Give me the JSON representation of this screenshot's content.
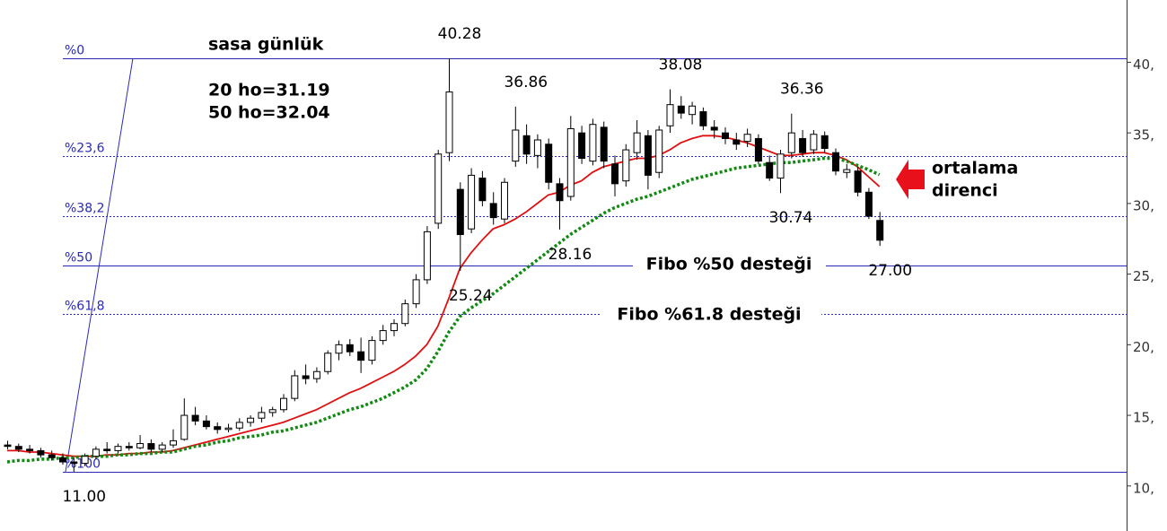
{
  "chart_data": {
    "type": "candlestick",
    "title": "sasa günlük",
    "notes": [
      "20 ho=31.19",
      "50 ho=32.04"
    ],
    "ylim": [
      6.81,
      44.41
    ],
    "yticks": [
      {
        "value": 10,
        "label": "10,"
      },
      {
        "value": 15,
        "label": "15,"
      },
      {
        "value": 20,
        "label": "20,"
      },
      {
        "value": 25,
        "label": "25,"
      },
      {
        "value": 30,
        "label": "30,"
      },
      {
        "value": 35,
        "label": "35,"
      },
      {
        "value": 40,
        "label": "40,"
      }
    ],
    "up_color": "#ffffff",
    "down_color": "#000000",
    "ohlc": [
      [
        12.9,
        13.2,
        12.6,
        12.8
      ],
      [
        12.8,
        13.0,
        12.4,
        12.6
      ],
      [
        12.6,
        12.9,
        12.3,
        12.5
      ],
      [
        12.5,
        12.7,
        12.0,
        12.2
      ],
      [
        12.2,
        12.5,
        11.8,
        12.0
      ],
      [
        12.0,
        12.3,
        11.5,
        11.7
      ],
      [
        11.7,
        12.0,
        11.0,
        11.6
      ],
      [
        11.6,
        12.3,
        11.4,
        12.1
      ],
      [
        12.1,
        12.8,
        11.9,
        12.6
      ],
      [
        12.6,
        13.1,
        12.3,
        12.5
      ],
      [
        12.5,
        13.0,
        12.3,
        12.8
      ],
      [
        12.8,
        13.1,
        12.5,
        12.7
      ],
      [
        12.7,
        13.6,
        12.6,
        13.0
      ],
      [
        13.0,
        13.3,
        12.4,
        12.6
      ],
      [
        12.6,
        13.1,
        12.4,
        12.9
      ],
      [
        12.9,
        14.0,
        12.7,
        13.2
      ],
      [
        13.3,
        16.2,
        13.2,
        15.0
      ],
      [
        15.0,
        15.6,
        14.3,
        14.6
      ],
      [
        14.6,
        15.0,
        14.0,
        14.2
      ],
      [
        14.2,
        14.5,
        13.7,
        14.0
      ],
      [
        14.0,
        14.4,
        13.8,
        14.1
      ],
      [
        14.1,
        14.8,
        13.9,
        14.5
      ],
      [
        14.5,
        15.0,
        14.2,
        14.8
      ],
      [
        14.8,
        15.6,
        14.5,
        15.2
      ],
      [
        15.2,
        15.6,
        14.9,
        15.4
      ],
      [
        15.4,
        16.5,
        15.2,
        16.2
      ],
      [
        16.2,
        18.2,
        16.0,
        17.8
      ],
      [
        17.8,
        18.6,
        17.2,
        17.6
      ],
      [
        17.6,
        18.4,
        17.3,
        18.1
      ],
      [
        18.1,
        19.6,
        17.9,
        19.4
      ],
      [
        19.4,
        20.3,
        18.9,
        20.0
      ],
      [
        20.0,
        20.4,
        19.2,
        19.5
      ],
      [
        19.5,
        20.5,
        18.0,
        18.9
      ],
      [
        18.9,
        20.6,
        18.6,
        20.3
      ],
      [
        20.3,
        21.4,
        20.0,
        21.0
      ],
      [
        21.0,
        21.8,
        20.6,
        21.5
      ],
      [
        21.5,
        23.2,
        21.3,
        22.9
      ],
      [
        22.9,
        25.0,
        22.6,
        24.6
      ],
      [
        24.6,
        28.4,
        24.3,
        28.0
      ],
      [
        28.6,
        33.8,
        28.2,
        33.5
      ],
      [
        33.6,
        40.28,
        33.0,
        37.9
      ],
      [
        31.0,
        31.5,
        25.24,
        27.8
      ],
      [
        28.2,
        32.5,
        27.9,
        32.0
      ],
      [
        31.8,
        32.3,
        29.8,
        30.2
      ],
      [
        30.0,
        30.8,
        28.5,
        29.0
      ],
      [
        28.9,
        31.8,
        28.6,
        31.5
      ],
      [
        33.0,
        36.86,
        32.6,
        35.2
      ],
      [
        34.8,
        35.6,
        32.8,
        33.5
      ],
      [
        33.4,
        34.9,
        32.5,
        34.5
      ],
      [
        34.2,
        34.6,
        31.0,
        31.5
      ],
      [
        31.4,
        31.8,
        28.16,
        30.2
      ],
      [
        30.5,
        36.2,
        30.2,
        35.3
      ],
      [
        35.0,
        35.5,
        32.8,
        33.2
      ],
      [
        33.0,
        36.0,
        32.7,
        35.6
      ],
      [
        35.4,
        35.8,
        32.5,
        33.0
      ],
      [
        32.8,
        33.4,
        30.5,
        31.4
      ],
      [
        31.6,
        34.2,
        31.2,
        33.8
      ],
      [
        33.6,
        35.9,
        33.1,
        35.0
      ],
      [
        34.8,
        35.2,
        31.0,
        32.0
      ],
      [
        32.2,
        35.5,
        31.8,
        35.2
      ],
      [
        35.5,
        38.08,
        35.0,
        37.0
      ],
      [
        36.9,
        37.6,
        36.0,
        36.4
      ],
      [
        36.3,
        37.2,
        35.6,
        36.9
      ],
      [
        36.5,
        36.8,
        35.2,
        35.5
      ],
      [
        35.4,
        35.9,
        34.6,
        35.2
      ],
      [
        35.0,
        35.4,
        34.2,
        34.6
      ],
      [
        34.5,
        35.0,
        33.8,
        34.2
      ],
      [
        34.4,
        35.3,
        34.0,
        34.9
      ],
      [
        34.6,
        34.9,
        32.8,
        33.0
      ],
      [
        32.9,
        33.4,
        31.6,
        31.8
      ],
      [
        31.8,
        33.8,
        30.74,
        33.5
      ],
      [
        33.6,
        36.36,
        33.2,
        35.0
      ],
      [
        34.6,
        35.2,
        33.3,
        33.6
      ],
      [
        33.8,
        35.2,
        33.5,
        34.9
      ],
      [
        34.8,
        35.1,
        33.6,
        33.9
      ],
      [
        33.6,
        33.9,
        32.0,
        32.3
      ],
      [
        32.2,
        32.8,
        31.8,
        32.4
      ],
      [
        32.3,
        32.6,
        30.5,
        30.8
      ],
      [
        30.8,
        31.1,
        28.9,
        29.1
      ],
      [
        28.8,
        29.4,
        27.0,
        27.4
      ]
    ],
    "series": [
      {
        "color": "#e01010",
        "style": "solid",
        "values": [
          12.5,
          12.5,
          12.4,
          12.4,
          12.3,
          12.2,
          12.1,
          12.1,
          12.1,
          12.2,
          12.2,
          12.3,
          12.3,
          12.4,
          12.4,
          12.5,
          12.7,
          12.9,
          13.1,
          13.3,
          13.5,
          13.7,
          13.9,
          14.1,
          14.3,
          14.5,
          14.8,
          15.1,
          15.4,
          15.8,
          16.2,
          16.6,
          16.9,
          17.3,
          17.7,
          18.1,
          18.6,
          19.2,
          20.0,
          21.3,
          23.3,
          25.4,
          26.5,
          27.4,
          28.2,
          28.5,
          28.9,
          29.4,
          30.0,
          30.6,
          30.8,
          31.3,
          31.6,
          32.2,
          32.6,
          32.8,
          33.0,
          33.2,
          33.2,
          33.4,
          33.8,
          34.3,
          34.6,
          34.8,
          34.8,
          34.7,
          34.5,
          34.3,
          34.0,
          33.7,
          33.4,
          33.4,
          33.5,
          33.6,
          33.6,
          33.4,
          33.1,
          32.6,
          31.9,
          31.19
        ]
      },
      {
        "color": "#108a10",
        "style": "dotted",
        "values": [
          11.7,
          11.8,
          11.8,
          11.9,
          11.9,
          12.0,
          12.0,
          12.1,
          12.1,
          12.1,
          12.2,
          12.2,
          12.3,
          12.3,
          12.4,
          12.4,
          12.6,
          12.8,
          12.9,
          13.1,
          13.2,
          13.4,
          13.5,
          13.6,
          13.8,
          13.9,
          14.1,
          14.3,
          14.5,
          14.8,
          15.1,
          15.4,
          15.6,
          15.9,
          16.2,
          16.6,
          17.0,
          17.5,
          18.3,
          19.5,
          20.9,
          22.0,
          22.6,
          23.1,
          23.6,
          24.2,
          24.8,
          25.4,
          26.0,
          26.6,
          27.2,
          27.8,
          28.3,
          28.8,
          29.3,
          29.7,
          30.0,
          30.3,
          30.5,
          30.8,
          31.1,
          31.4,
          31.7,
          31.9,
          32.1,
          32.3,
          32.5,
          32.6,
          32.7,
          32.8,
          32.9,
          32.9,
          33.0,
          33.1,
          33.2,
          33.2,
          33.0,
          32.7,
          32.4,
          32.04
        ]
      }
    ],
    "fibonacci": {
      "color": "#2a2ab8",
      "levels": [
        {
          "label": "%0",
          "value": 40.28,
          "style": "solid"
        },
        {
          "label": "%23,6",
          "value": 33.37,
          "style": "dotted"
        },
        {
          "label": "%38,2",
          "value": 29.09,
          "style": "dotted"
        },
        {
          "label": "%50",
          "value": 25.64,
          "style": "solid"
        },
        {
          "label": "%61,8",
          "value": 22.19,
          "style": "dotted"
        },
        {
          "label": "%100",
          "value": 11.0,
          "style": "solid"
        }
      ]
    },
    "price_labels": [
      {
        "value": 40.28,
        "label": "40.28",
        "at": "high"
      },
      {
        "value": 11.0,
        "label": "11.00",
        "at": "low"
      },
      {
        "value": 25.24,
        "label": "25.24",
        "at": "low"
      },
      {
        "value": 36.86,
        "label": "36.86",
        "at": "high"
      },
      {
        "value": 28.16,
        "label": "28.16",
        "at": "low"
      },
      {
        "value": 38.08,
        "label": "38.08",
        "at": "high"
      },
      {
        "value": 36.36,
        "label": "36.36",
        "at": "high"
      },
      {
        "value": 30.74,
        "label": "30.74",
        "at": "low"
      },
      {
        "value": 27.0,
        "label": "27.00",
        "at": "low"
      }
    ],
    "annotations": [
      "Fibo %50 desteği",
      "Fibo %61.8 desteği",
      "ortalama",
      "direnci"
    ]
  }
}
